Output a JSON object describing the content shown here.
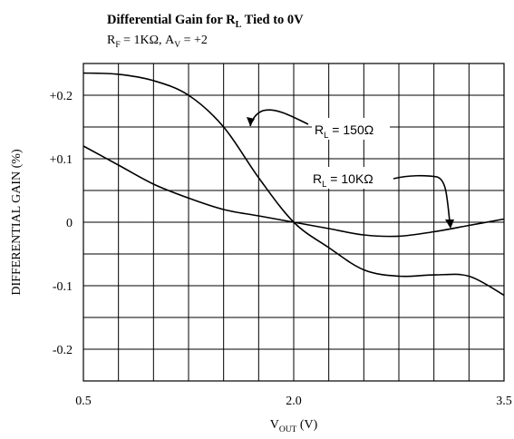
{
  "chart_data": {
    "type": "line",
    "title": "Differential Gain for R",
    "title_sub": "L",
    "title_tail": " Tied to 0V",
    "subtitle": {
      "rf": "R",
      "rf_sub": "F",
      "rf_tail": " = 1KΩ, ",
      "av": "A",
      "av_sub": "V",
      "av_tail": " = +2"
    },
    "ylabel": "DIFFERENTIAL GAIN (%)",
    "xlabel": "V",
    "xlabel_sub": "OUT",
    "xlabel_tail": " (V)",
    "xlim": [
      0.5,
      3.5
    ],
    "ylim": [
      -0.25,
      0.25
    ],
    "x_grid_step": 0.25,
    "y_grid_step": 0.05,
    "x_ticks": [
      {
        "value": 0.5,
        "label": "0.5"
      },
      {
        "value": 2.0,
        "label": "2.0"
      },
      {
        "value": 3.5,
        "label": "3.5"
      }
    ],
    "y_ticks": [
      {
        "value": 0.2,
        "label": "+0.2"
      },
      {
        "value": 0.1,
        "label": "+0.1"
      },
      {
        "value": 0.0,
        "label": "0"
      },
      {
        "value": -0.1,
        "label": "-0.1"
      },
      {
        "value": -0.2,
        "label": "-0.2"
      }
    ],
    "grid": true,
    "series": [
      {
        "name_main": "R",
        "name_sub": "L",
        "name_tail": " = 150Ω",
        "points": [
          [
            0.5,
            0.235
          ],
          [
            0.75,
            0.233
          ],
          [
            1.0,
            0.223
          ],
          [
            1.25,
            0.2
          ],
          [
            1.5,
            0.15
          ],
          [
            1.75,
            0.07
          ],
          [
            2.0,
            0.0
          ],
          [
            2.25,
            -0.04
          ],
          [
            2.5,
            -0.075
          ],
          [
            2.75,
            -0.085
          ],
          [
            3.0,
            -0.083
          ],
          [
            3.25,
            -0.085
          ],
          [
            3.5,
            -0.115
          ]
        ]
      },
      {
        "name_main": "R",
        "name_sub": "L",
        "name_tail": " = 10KΩ",
        "points": [
          [
            0.5,
            0.12
          ],
          [
            0.75,
            0.09
          ],
          [
            1.0,
            0.06
          ],
          [
            1.25,
            0.038
          ],
          [
            1.5,
            0.02
          ],
          [
            1.75,
            0.01
          ],
          [
            2.0,
            0.0
          ],
          [
            2.25,
            -0.01
          ],
          [
            2.5,
            -0.02
          ],
          [
            2.75,
            -0.022
          ],
          [
            3.0,
            -0.015
          ],
          [
            3.25,
            -0.005
          ],
          [
            3.5,
            0.005
          ]
        ]
      }
    ]
  }
}
